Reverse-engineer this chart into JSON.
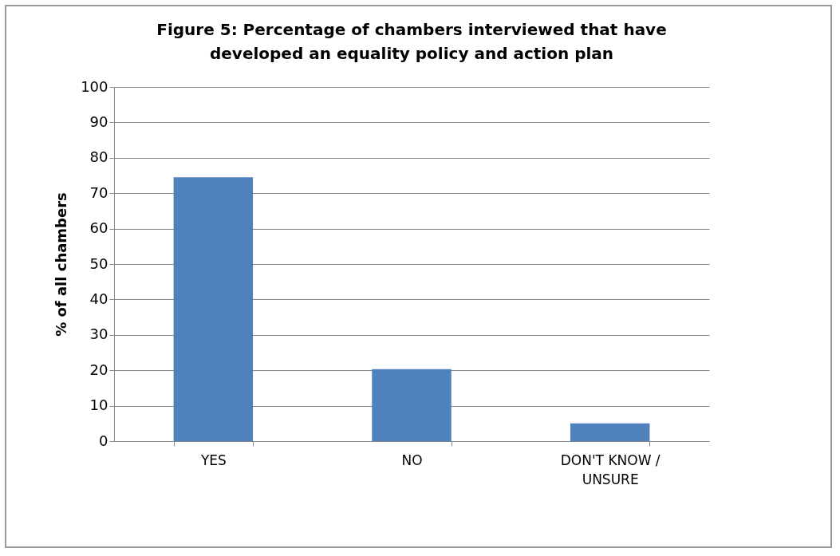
{
  "chart_data": {
    "type": "bar",
    "title": "Figure 5: Percentage of chambers interviewed that have developed an equality policy and action plan",
    "ylabel": "% of all chambers",
    "categories": [
      "YES",
      "NO",
      "DON'T KNOW / UNSURE"
    ],
    "values": [
      74.5,
      20.3,
      5
    ],
    "color": "#4f81bd",
    "ylim": [
      0,
      100
    ],
    "yticks": [
      0,
      10,
      20,
      30,
      40,
      50,
      60,
      70,
      80,
      90,
      100
    ],
    "grid": "y"
  }
}
